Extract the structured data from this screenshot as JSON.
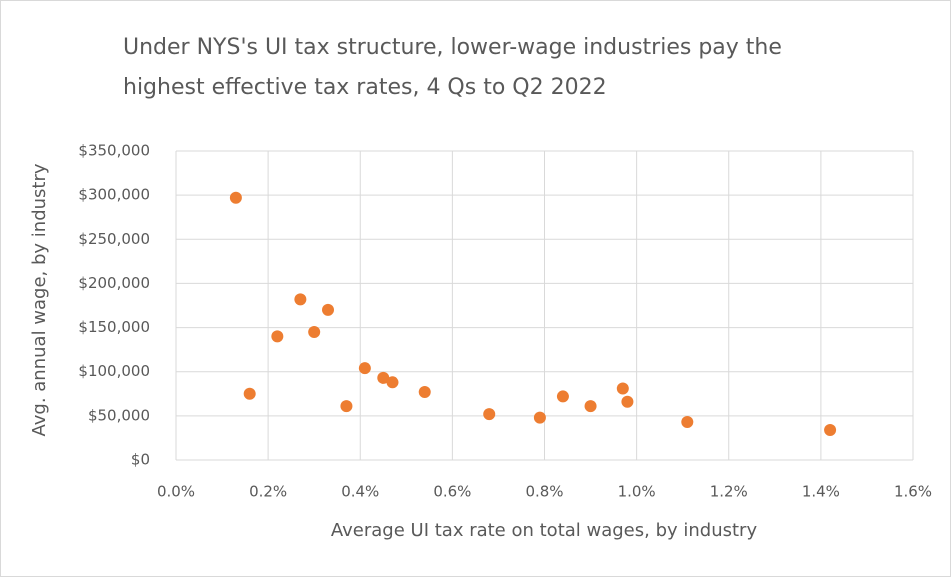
{
  "chart_data": {
    "type": "scatter",
    "title": "Under NYS's UI tax structure, lower-wage industries pay the highest effective tax rates, 4 Qs to Q2 2022",
    "x_label": "Average UI tax rate on total wages, by industry",
    "y_label": "Avg. annual wage, by industry",
    "x": [
      0.13,
      0.16,
      0.22,
      0.27,
      0.3,
      0.33,
      0.37,
      0.41,
      0.45,
      0.47,
      0.54,
      0.68,
      0.79,
      0.84,
      0.9,
      0.97,
      0.98,
      1.11,
      1.42
    ],
    "series": [
      {
        "color": "#ed7d31",
        "values": [
          297000,
          75000,
          140000,
          182000,
          145000,
          170000,
          61000,
          104000,
          93000,
          88000,
          77000,
          52000,
          48000,
          72000,
          61000,
          81000,
          66000,
          43000,
          34000
        ]
      }
    ],
    "xlim": [
      0,
      1.6
    ],
    "xticks": [
      {
        "value": 0,
        "label": "0.0%"
      },
      {
        "value": 0.2,
        "label": "0.2%"
      },
      {
        "value": 0.4,
        "label": "0.4%"
      },
      {
        "value": 0.6,
        "label": "0.6%"
      },
      {
        "value": 0.8,
        "label": "0.8%"
      },
      {
        "value": 1.0,
        "label": "1.0%"
      },
      {
        "value": 1.2,
        "label": "1.2%"
      },
      {
        "value": 1.4,
        "label": "1.4%"
      },
      {
        "value": 1.6,
        "label": "1.6%"
      }
    ],
    "ylim": [
      0,
      350000
    ],
    "yticks": [
      {
        "value": 0,
        "label": "$0"
      },
      {
        "value": 50000,
        "label": "$50,000"
      },
      {
        "value": 100000,
        "label": "$100,000"
      },
      {
        "value": 150000,
        "label": "$150,000"
      },
      {
        "value": 200000,
        "label": "$200,000"
      },
      {
        "value": 250000,
        "label": "$250,000"
      },
      {
        "value": 300000,
        "label": "$300,000"
      },
      {
        "value": 350000,
        "label": "$350,000"
      }
    ],
    "grid": true
  }
}
